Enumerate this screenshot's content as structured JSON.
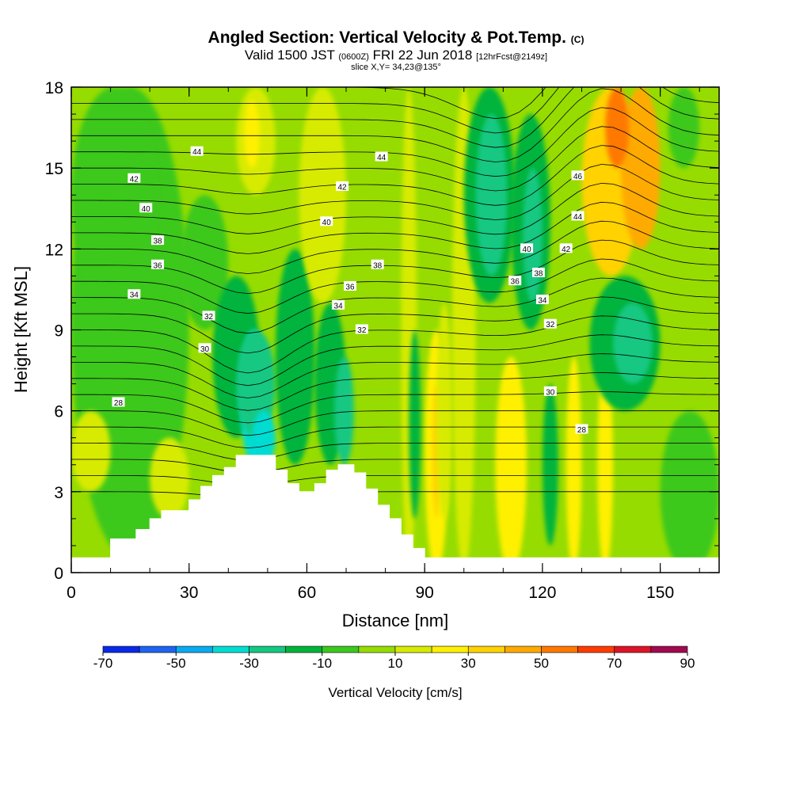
{
  "header": {
    "title": "Angled Section: Vertical Velocity & Pot.Temp.",
    "title_mark": "(C)",
    "valid_prefix": "Valid 1500 JST",
    "valid_utc": "(0600Z)",
    "valid_date": "FRI 22 Jun 2018",
    "valid_fcst": "[12hrFcst@2149z]",
    "slice": "slice X,Y= 34,23@135°"
  },
  "chart_data": {
    "type": "heatmap",
    "xlabel": "Distance [nm]",
    "ylabel": "Height [Kft MSL]",
    "xlim": [
      0,
      165
    ],
    "ylim": [
      0,
      18
    ],
    "xticks": [
      "0",
      "30",
      "60",
      "90",
      "120",
      "150"
    ],
    "yticks": [
      "0",
      "3",
      "6",
      "9",
      "12",
      "15",
      "18"
    ],
    "x_minor_step": 10,
    "y_minor_step": 1,
    "colorbar": {
      "label": "Vertical Velocity [cm/s]",
      "tick_labels": [
        "-70",
        "-50",
        "-30",
        "-10",
        "10",
        "30",
        "50",
        "70",
        "90"
      ],
      "boundaries": [
        -70,
        -60,
        -50,
        -40,
        -30,
        -20,
        -10,
        0,
        10,
        20,
        30,
        40,
        50,
        60,
        70,
        80,
        90
      ],
      "colors": [
        "#0a28e6",
        "#1e64f0",
        "#0aaaf0",
        "#00dcd2",
        "#14c882",
        "#00b43c",
        "#3cc81e",
        "#96dc00",
        "#d7eb00",
        "#fff000",
        "#ffd200",
        "#ffaa00",
        "#ff7800",
        "#ff3c00",
        "#dc1428",
        "#a00a50",
        "#640a78"
      ]
    },
    "terrain_kft": [
      [
        0,
        0.55
      ],
      [
        10,
        0.55
      ],
      [
        10,
        1.25
      ],
      [
        16.5,
        1.25
      ],
      [
        16.5,
        1.6
      ],
      [
        20,
        1.6
      ],
      [
        20,
        2.0
      ],
      [
        23,
        2.0
      ],
      [
        23,
        2.3
      ],
      [
        30,
        2.3
      ],
      [
        30,
        2.7
      ],
      [
        33,
        2.7
      ],
      [
        33,
        3.2
      ],
      [
        36,
        3.2
      ],
      [
        36,
        3.6
      ],
      [
        39,
        3.6
      ],
      [
        39,
        3.9
      ],
      [
        42,
        3.9
      ],
      [
        42,
        4.35
      ],
      [
        52,
        4.35
      ],
      [
        52,
        3.8
      ],
      [
        55,
        3.8
      ],
      [
        55,
        3.3
      ],
      [
        58,
        3.3
      ],
      [
        58,
        3.0
      ],
      [
        62,
        3.0
      ],
      [
        62,
        3.3
      ],
      [
        65,
        3.3
      ],
      [
        65,
        3.8
      ],
      [
        68,
        3.8
      ],
      [
        68,
        4.0
      ],
      [
        72,
        4.0
      ],
      [
        72,
        3.7
      ],
      [
        75,
        3.7
      ],
      [
        75,
        3.1
      ],
      [
        78,
        3.1
      ],
      [
        78,
        2.5
      ],
      [
        81,
        2.5
      ],
      [
        81,
        2.0
      ],
      [
        84,
        2.0
      ],
      [
        84,
        1.4
      ],
      [
        87,
        1.4
      ],
      [
        87,
        0.9
      ],
      [
        90,
        0.9
      ],
      [
        90,
        0.55
      ],
      [
        165,
        0.55
      ]
    ],
    "theta_labels": [
      {
        "text": "44",
        "x": 32,
        "y": 15.6
      },
      {
        "text": "42",
        "x": 16,
        "y": 14.6
      },
      {
        "text": "40",
        "x": 19,
        "y": 13.5
      },
      {
        "text": "38",
        "x": 22,
        "y": 12.3
      },
      {
        "text": "36",
        "x": 22,
        "y": 11.4
      },
      {
        "text": "34",
        "x": 16,
        "y": 10.3
      },
      {
        "text": "32",
        "x": 35,
        "y": 9.5
      },
      {
        "text": "30",
        "x": 34,
        "y": 8.3
      },
      {
        "text": "28",
        "x": 12,
        "y": 6.3
      },
      {
        "text": "44",
        "x": 79,
        "y": 15.4
      },
      {
        "text": "42",
        "x": 69,
        "y": 14.3
      },
      {
        "text": "40",
        "x": 65,
        "y": 13.0
      },
      {
        "text": "38",
        "x": 78,
        "y": 11.4
      },
      {
        "text": "36",
        "x": 71,
        "y": 10.6
      },
      {
        "text": "34",
        "x": 68,
        "y": 9.9
      },
      {
        "text": "32",
        "x": 74,
        "y": 9.0
      },
      {
        "text": "40",
        "x": 116,
        "y": 12.0
      },
      {
        "text": "42",
        "x": 126,
        "y": 12.0
      },
      {
        "text": "38",
        "x": 119,
        "y": 11.1
      },
      {
        "text": "36",
        "x": 113,
        "y": 10.8
      },
      {
        "text": "34",
        "x": 120,
        "y": 10.1
      },
      {
        "text": "32",
        "x": 122,
        "y": 9.2
      },
      {
        "text": "46",
        "x": 129,
        "y": 14.7
      },
      {
        "text": "44",
        "x": 129,
        "y": 13.2
      },
      {
        "text": "30",
        "x": 122,
        "y": 6.7
      },
      {
        "text": "28",
        "x": 130,
        "y": 5.3
      }
    ]
  }
}
